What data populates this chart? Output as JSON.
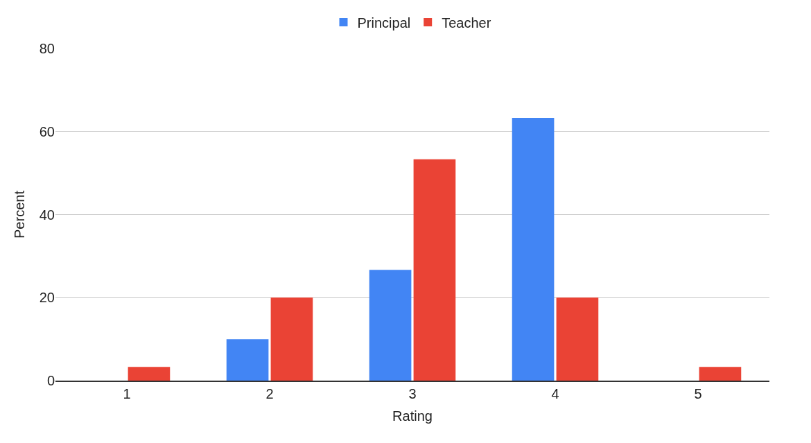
{
  "chart_data": {
    "type": "bar",
    "xlabel": "Rating",
    "ylabel": "Percent",
    "categories": [
      "1",
      "2",
      "3",
      "4",
      "5"
    ],
    "series": [
      {
        "name": "Principal",
        "color": "#4285f4",
        "values": [
          0,
          10,
          26.7,
          63.3,
          0
        ]
      },
      {
        "name": "Teacher",
        "color": "#ea4335",
        "values": [
          3.3,
          20,
          53.3,
          20,
          3.3
        ]
      }
    ],
    "ylim": [
      0,
      80
    ],
    "yticks": [
      0,
      20,
      40,
      60,
      80
    ],
    "grid": "y",
    "legend": "top"
  }
}
